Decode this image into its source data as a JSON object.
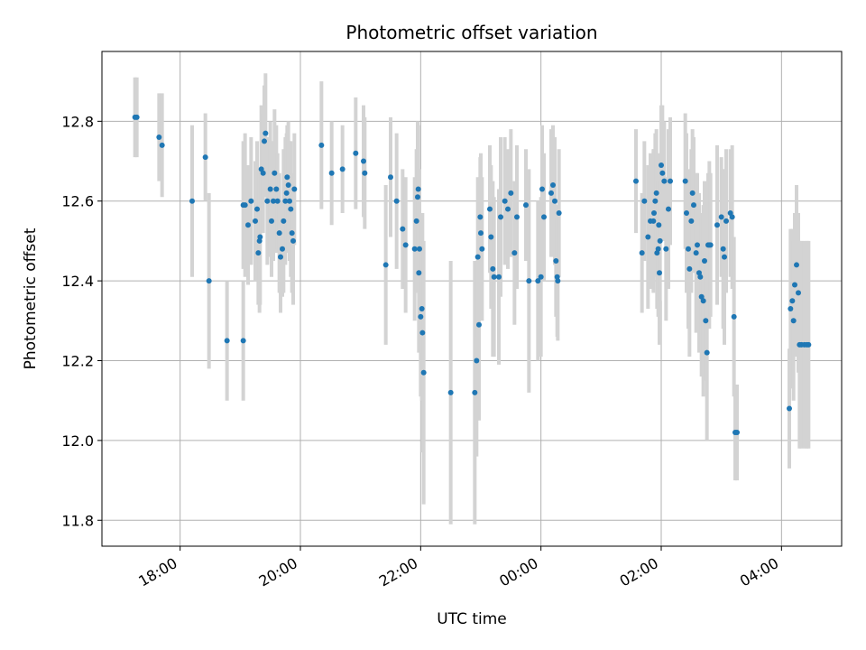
{
  "chart_data": {
    "type": "scatter",
    "title": "Photometric offset variation",
    "xlabel": "UTC time",
    "ylabel": "Photometric offset",
    "x_unit": "hours (UTC, continuing past midnight as 24+)",
    "xlim": [
      16.7,
      29.0
    ],
    "ylim": [
      11.735,
      12.975
    ],
    "x_ticks": [
      {
        "value": 18,
        "label": "18:00"
      },
      {
        "value": 20,
        "label": "20:00"
      },
      {
        "value": 22,
        "label": "22:00"
      },
      {
        "value": 24,
        "label": "00:00"
      },
      {
        "value": 26,
        "label": "02:00"
      },
      {
        "value": 28,
        "label": "04:00"
      }
    ],
    "y_ticks": [
      {
        "value": 11.8,
        "label": "11.8"
      },
      {
        "value": 12.0,
        "label": "12.0"
      },
      {
        "value": 12.2,
        "label": "12.2"
      },
      {
        "value": 12.4,
        "label": "12.4"
      },
      {
        "value": 12.6,
        "label": "12.6"
      },
      {
        "value": 12.8,
        "label": "12.8"
      }
    ],
    "grid": true,
    "colors": {
      "points": "#1f77b4",
      "errorbars": "#d3d3d3",
      "grid": "#b0b0b0"
    },
    "series": [
      {
        "points": [
          [
            17.25,
            12.81,
            0.1
          ],
          [
            17.28,
            12.81,
            0.1
          ],
          [
            17.65,
            12.76,
            0.11
          ],
          [
            17.7,
            12.74,
            0.13
          ],
          [
            18.2,
            12.6,
            0.19
          ],
          [
            18.42,
            12.71,
            0.11
          ],
          [
            18.48,
            12.4,
            0.22
          ],
          [
            18.78,
            12.25,
            0.15
          ],
          [
            19.05,
            12.25,
            0.15
          ],
          [
            19.05,
            12.59,
            0.16
          ],
          [
            19.08,
            12.59,
            0.18
          ],
          [
            19.13,
            12.54,
            0.15
          ],
          [
            19.18,
            12.6,
            0.16
          ],
          [
            19.25,
            12.55,
            0.15
          ],
          [
            19.28,
            12.58,
            0.17
          ],
          [
            19.3,
            12.47,
            0.13
          ],
          [
            19.32,
            12.5,
            0.18
          ],
          [
            19.33,
            12.51,
            0.17
          ],
          [
            19.35,
            12.68,
            0.16
          ],
          [
            19.38,
            12.67,
            0.15
          ],
          [
            19.4,
            12.75,
            0.14
          ],
          [
            19.42,
            12.77,
            0.15
          ],
          [
            19.45,
            12.6,
            0.16
          ],
          [
            19.5,
            12.63,
            0.17
          ],
          [
            19.52,
            12.55,
            0.14
          ],
          [
            19.55,
            12.6,
            0.15
          ],
          [
            19.57,
            12.67,
            0.16
          ],
          [
            19.6,
            12.63,
            0.16
          ],
          [
            19.62,
            12.6,
            0.12
          ],
          [
            19.65,
            12.52,
            0.15
          ],
          [
            19.67,
            12.46,
            0.14
          ],
          [
            19.7,
            12.48,
            0.12
          ],
          [
            19.72,
            12.55,
            0.18
          ],
          [
            19.75,
            12.6,
            0.16
          ],
          [
            19.77,
            12.62,
            0.15
          ],
          [
            19.78,
            12.66,
            0.13
          ],
          [
            19.8,
            12.64,
            0.16
          ],
          [
            19.82,
            12.6,
            0.15
          ],
          [
            19.84,
            12.58,
            0.17
          ],
          [
            19.86,
            12.52,
            0.15
          ],
          [
            19.88,
            12.5,
            0.16
          ],
          [
            19.9,
            12.63,
            0.14
          ],
          [
            20.35,
            12.74,
            0.16
          ],
          [
            20.52,
            12.67,
            0.13
          ],
          [
            20.7,
            12.68,
            0.11
          ],
          [
            20.92,
            12.72,
            0.14
          ],
          [
            21.05,
            12.7,
            0.14
          ],
          [
            21.07,
            12.67,
            0.14
          ],
          [
            21.42,
            12.44,
            0.2
          ],
          [
            21.5,
            12.66,
            0.15
          ],
          [
            21.6,
            12.6,
            0.17
          ],
          [
            21.7,
            12.53,
            0.15
          ],
          [
            21.75,
            12.49,
            0.17
          ],
          [
            21.9,
            12.48,
            0.18
          ],
          [
            21.93,
            12.55,
            0.18
          ],
          [
            21.95,
            12.61,
            0.19
          ],
          [
            21.96,
            12.63,
            0.16
          ],
          [
            21.97,
            12.42,
            0.2
          ],
          [
            21.98,
            12.48,
            0.2
          ],
          [
            22.0,
            12.31,
            0.2
          ],
          [
            22.02,
            12.33,
            0.23
          ],
          [
            22.03,
            12.27,
            0.3
          ],
          [
            22.05,
            12.17,
            0.33
          ],
          [
            22.5,
            12.12,
            0.33
          ],
          [
            22.9,
            12.12,
            0.33
          ],
          [
            22.93,
            12.2,
            0.24
          ],
          [
            22.95,
            12.46,
            0.2
          ],
          [
            22.97,
            12.29,
            0.24
          ],
          [
            22.99,
            12.56,
            0.15
          ],
          [
            23.0,
            12.52,
            0.2
          ],
          [
            23.02,
            12.48,
            0.18
          ],
          [
            23.15,
            12.58,
            0.16
          ],
          [
            23.17,
            12.51,
            0.18
          ],
          [
            23.2,
            12.43,
            0.22
          ],
          [
            23.22,
            12.41,
            0.2
          ],
          [
            23.3,
            12.41,
            0.22
          ],
          [
            23.33,
            12.56,
            0.2
          ],
          [
            23.4,
            12.6,
            0.16
          ],
          [
            23.45,
            12.58,
            0.15
          ],
          [
            23.5,
            12.62,
            0.16
          ],
          [
            23.56,
            12.47,
            0.18
          ],
          [
            23.6,
            12.56,
            0.18
          ],
          [
            23.75,
            12.59,
            0.14
          ],
          [
            23.8,
            12.4,
            0.28
          ],
          [
            23.95,
            12.4,
            0.2
          ],
          [
            24.0,
            12.41,
            0.2
          ],
          [
            24.02,
            12.63,
            0.16
          ],
          [
            24.05,
            12.56,
            0.16
          ],
          [
            24.17,
            12.62,
            0.16
          ],
          [
            24.2,
            12.64,
            0.15
          ],
          [
            24.23,
            12.6,
            0.16
          ],
          [
            24.25,
            12.45,
            0.14
          ],
          [
            24.27,
            12.41,
            0.15
          ],
          [
            24.28,
            12.4,
            0.15
          ],
          [
            24.3,
            12.57,
            0.16
          ],
          [
            25.58,
            12.65,
            0.13
          ],
          [
            25.68,
            12.47,
            0.15
          ],
          [
            25.72,
            12.6,
            0.15
          ],
          [
            25.78,
            12.51,
            0.18
          ],
          [
            25.82,
            12.55,
            0.17
          ],
          [
            25.87,
            12.55,
            0.18
          ],
          [
            25.88,
            12.57,
            0.16
          ],
          [
            25.9,
            12.6,
            0.17
          ],
          [
            25.92,
            12.62,
            0.16
          ],
          [
            25.93,
            12.47,
            0.14
          ],
          [
            25.95,
            12.48,
            0.17
          ],
          [
            25.96,
            12.54,
            0.18
          ],
          [
            25.97,
            12.42,
            0.18
          ],
          [
            25.98,
            12.5,
            0.15
          ],
          [
            26.0,
            12.69,
            0.15
          ],
          [
            26.02,
            12.67,
            0.17
          ],
          [
            26.05,
            12.65,
            0.15
          ],
          [
            26.08,
            12.48,
            0.18
          ],
          [
            26.12,
            12.58,
            0.2
          ],
          [
            26.15,
            12.65,
            0.16
          ],
          [
            26.4,
            12.65,
            0.17
          ],
          [
            26.42,
            12.57,
            0.2
          ],
          [
            26.45,
            12.48,
            0.2
          ],
          [
            26.47,
            12.43,
            0.22
          ],
          [
            26.5,
            12.55,
            0.18
          ],
          [
            26.52,
            12.62,
            0.16
          ],
          [
            26.54,
            12.59,
            0.17
          ],
          [
            26.58,
            12.47,
            0.2
          ],
          [
            26.6,
            12.49,
            0.18
          ],
          [
            26.63,
            12.42,
            0.2
          ],
          [
            26.65,
            12.41,
            0.16
          ],
          [
            26.67,
            12.36,
            0.2
          ],
          [
            26.7,
            12.35,
            0.24
          ],
          [
            26.72,
            12.45,
            0.2
          ],
          [
            26.74,
            12.3,
            0.15
          ],
          [
            26.76,
            12.22,
            0.22
          ],
          [
            26.78,
            12.49,
            0.18
          ],
          [
            26.8,
            12.49,
            0.21
          ],
          [
            26.82,
            12.49,
            0.18
          ],
          [
            26.93,
            12.54,
            0.2
          ],
          [
            27.0,
            12.56,
            0.15
          ],
          [
            27.03,
            12.48,
            0.2
          ],
          [
            27.05,
            12.46,
            0.22
          ],
          [
            27.08,
            12.55,
            0.18
          ],
          [
            27.15,
            12.57,
            0.16
          ],
          [
            27.18,
            12.56,
            0.18
          ],
          [
            27.21,
            12.31,
            0.2
          ],
          [
            27.23,
            12.02,
            0.12
          ],
          [
            27.26,
            12.02,
            0.12
          ],
          [
            28.13,
            12.08,
            0.15
          ],
          [
            28.15,
            12.33,
            0.2
          ],
          [
            28.18,
            12.35,
            0.18
          ],
          [
            28.2,
            12.3,
            0.2
          ],
          [
            28.22,
            12.39,
            0.18
          ],
          [
            28.25,
            12.44,
            0.2
          ],
          [
            28.28,
            12.37,
            0.2
          ],
          [
            28.3,
            12.24,
            0.26
          ],
          [
            28.33,
            12.24,
            0.26
          ],
          [
            28.38,
            12.24,
            0.26
          ],
          [
            28.42,
            12.24,
            0.26
          ],
          [
            28.45,
            12.24,
            0.26
          ]
        ]
      }
    ]
  }
}
